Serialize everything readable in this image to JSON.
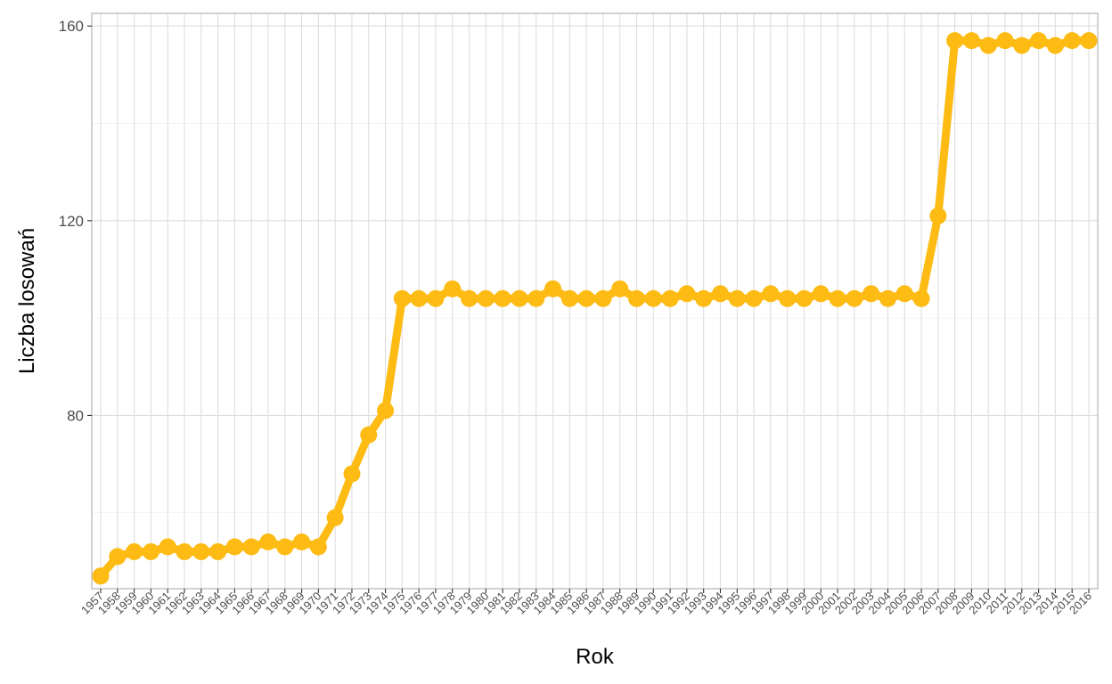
{
  "chart_data": {
    "type": "line",
    "xlabel": "Rok",
    "ylabel": "Liczba losowań",
    "x": [
      1957,
      1958,
      1959,
      1960,
      1961,
      1962,
      1963,
      1964,
      1965,
      1966,
      1967,
      1968,
      1969,
      1970,
      1971,
      1972,
      1973,
      1974,
      1975,
      1976,
      1977,
      1978,
      1979,
      1980,
      1981,
      1982,
      1983,
      1984,
      1985,
      1986,
      1987,
      1988,
      1989,
      1990,
      1991,
      1992,
      1993,
      1994,
      1995,
      1996,
      1997,
      1998,
      1999,
      2000,
      2001,
      2002,
      2003,
      2004,
      2005,
      2006,
      2007,
      2008,
      2009,
      2010,
      2011,
      2012,
      2013,
      2014,
      2015,
      2016
    ],
    "series": [
      {
        "values": [
          47,
          51,
          52,
          52,
          53,
          52,
          52,
          52,
          53,
          53,
          54,
          53,
          54,
          53,
          59,
          68,
          76,
          81,
          104,
          104,
          104,
          106,
          104,
          104,
          104,
          104,
          104,
          106,
          104,
          104,
          104,
          106,
          104,
          104,
          104,
          105,
          104,
          105,
          104,
          104,
          105,
          104,
          104,
          105,
          104,
          104,
          105,
          104,
          105,
          104,
          121,
          157,
          157,
          156,
          157,
          156,
          157,
          156,
          157,
          157
        ],
        "color": "#FDBB13"
      }
    ],
    "yticks": [
      80,
      120,
      160
    ],
    "ylim": [
      44.4,
      162.6
    ],
    "grid": true,
    "legend": "none"
  }
}
